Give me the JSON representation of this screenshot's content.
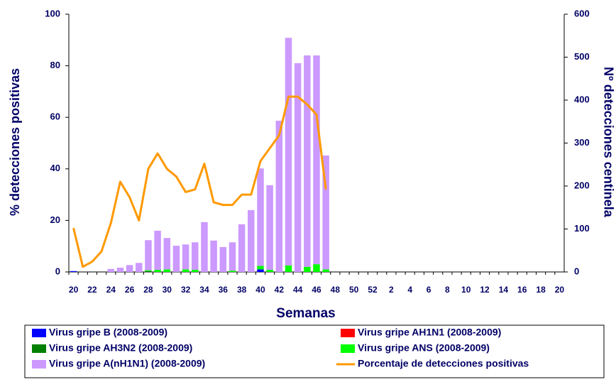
{
  "chart_data": {
    "type": "combo",
    "categories": [
      20,
      null,
      22,
      null,
      24,
      null,
      26,
      null,
      28,
      null,
      30,
      null,
      32,
      null,
      34,
      null,
      36,
      null,
      38,
      null,
      40,
      null,
      42,
      null,
      44,
      null,
      46,
      null,
      48,
      null,
      50,
      null,
      52,
      null,
      2,
      null,
      4,
      null,
      6,
      null,
      8,
      null,
      10,
      null,
      12,
      null,
      14,
      null,
      16,
      null,
      18,
      null,
      20
    ],
    "x_label": "Semanas",
    "y_label": "% detecciones positivas",
    "y2_label": "Nº detecciones centinela",
    "ylim": [
      0,
      100
    ],
    "yticks": [
      0,
      20,
      40,
      60,
      80,
      100
    ],
    "y2lim": [
      0,
      600
    ],
    "y2ticks": [
      0,
      100,
      200,
      300,
      400,
      500,
      600
    ],
    "legend": "bottom",
    "series": [
      {
        "name": "Virus gripe B (2008-2009)",
        "type": "bar",
        "axis": "y2",
        "color": "#0000ff",
        "values": [
          2,
          0,
          0,
          0,
          0,
          0,
          0,
          0,
          0,
          0,
          0,
          0,
          0,
          0,
          0,
          0,
          0,
          0,
          0,
          0,
          6,
          0,
          0,
          0,
          0,
          0,
          0,
          0,
          null,
          null,
          null,
          null,
          null,
          null,
          null,
          null,
          null,
          null,
          null,
          null,
          null,
          null,
          null,
          null,
          null,
          null,
          null,
          null,
          null,
          null,
          null,
          null,
          null
        ]
      },
      {
        "name": "Virus gripe AH1N1 (2008-2009)",
        "type": "bar",
        "axis": "y2",
        "color": "#ff0000",
        "values": [
          0,
          0,
          0,
          0,
          0,
          0,
          0,
          0,
          0,
          0,
          0,
          0,
          0,
          0,
          0,
          0,
          0,
          0,
          0,
          0,
          0,
          0,
          0,
          0,
          0,
          0,
          0,
          0,
          null,
          null,
          null,
          null,
          null,
          null,
          null,
          null,
          null,
          null,
          null,
          null,
          null,
          null,
          null,
          null,
          null,
          null,
          null,
          null,
          null,
          null,
          null,
          null,
          null
        ]
      },
      {
        "name": "Virus gripe AH3N2 (2008-2009)",
        "type": "bar",
        "axis": "y2",
        "color": "#008000",
        "values": [
          0,
          0,
          0,
          0,
          0,
          0,
          0,
          0,
          2,
          0,
          0,
          0,
          0,
          0,
          0,
          0,
          0,
          0,
          0,
          0,
          0,
          0,
          0,
          0,
          0,
          0,
          0,
          0,
          null,
          null,
          null,
          null,
          null,
          null,
          null,
          null,
          null,
          null,
          null,
          null,
          null,
          null,
          null,
          null,
          null,
          null,
          null,
          null,
          null,
          null,
          null,
          null,
          null
        ]
      },
      {
        "name": "Virus gripe ANS (2008-2009)",
        "type": "bar",
        "axis": "y2",
        "color": "#00ff00",
        "values": [
          0,
          0,
          0,
          0,
          0,
          0,
          0,
          0,
          2,
          5,
          6,
          0,
          6,
          5,
          0,
          0,
          0,
          3,
          0,
          0,
          8,
          5,
          0,
          15,
          0,
          12,
          18,
          6,
          null,
          null,
          null,
          null,
          null,
          null,
          null,
          null,
          null,
          null,
          null,
          null,
          null,
          null,
          null,
          null,
          null,
          null,
          null,
          null,
          null,
          null,
          null,
          null,
          null
        ]
      },
      {
        "name": "Virus gripe A(nH1N1) (2008-2009)",
        "type": "bar",
        "axis": "y2",
        "color": "#cc99ff",
        "values": [
          0,
          0,
          0,
          0,
          7,
          10,
          16,
          21,
          70,
          91,
          73,
          61,
          58,
          64,
          116,
          73,
          58,
          66,
          111,
          144,
          227,
          197,
          352,
          530,
          486,
          492,
          486,
          265,
          null,
          null,
          null,
          null,
          null,
          null,
          null,
          null,
          null,
          null,
          null,
          null,
          null,
          null,
          null,
          null,
          null,
          null,
          null,
          null,
          null,
          null,
          null,
          null,
          null
        ]
      },
      {
        "name": "Porcentaje de detecciones positivas",
        "type": "line",
        "axis": "y",
        "color": "#ff9900",
        "values": [
          17,
          2,
          4,
          8,
          19,
          35,
          29,
          20,
          40,
          46,
          40,
          37,
          31,
          32,
          42,
          27,
          26,
          26,
          30,
          30,
          43,
          48,
          53,
          68,
          68,
          65,
          61,
          32,
          null,
          null,
          null,
          null,
          null,
          null,
          null,
          null,
          null,
          null,
          null,
          null,
          null,
          null,
          null,
          null,
          null,
          null,
          null,
          null,
          null,
          null,
          null,
          null,
          null
        ]
      }
    ]
  }
}
